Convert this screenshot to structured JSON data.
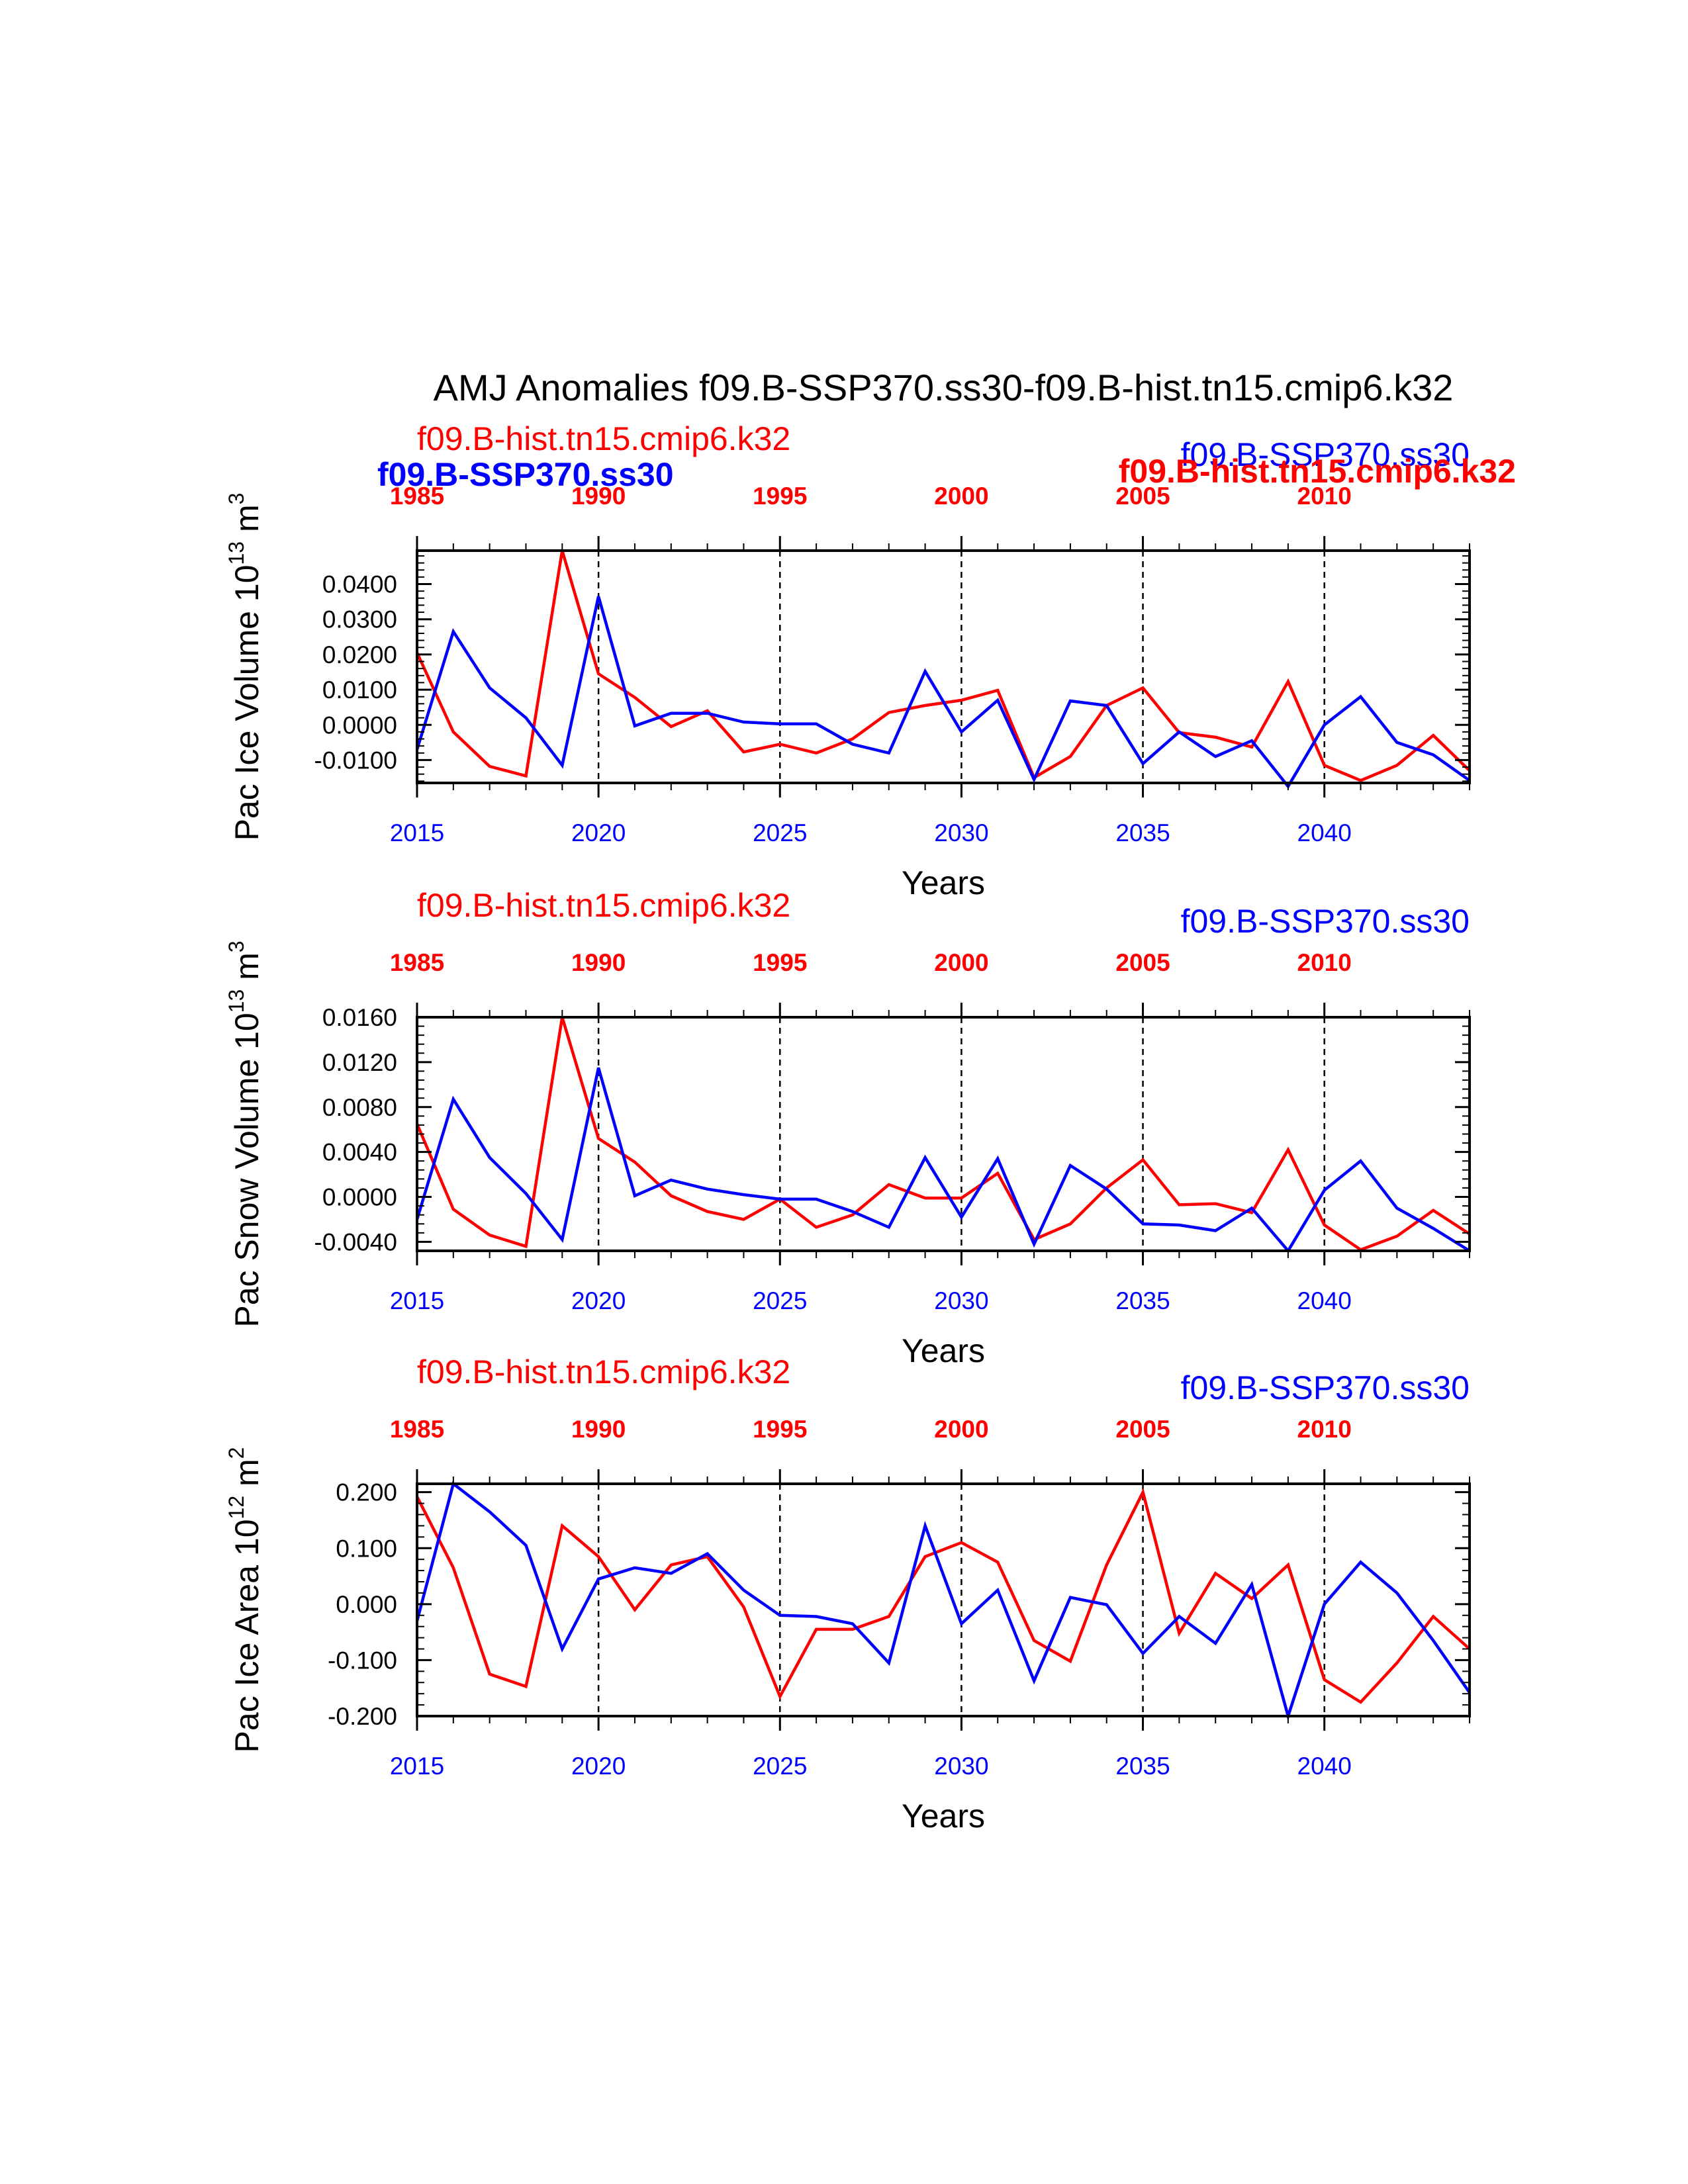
{
  "colors": {
    "exp": "#0000ff",
    "ctl": "#ff0000",
    "axis": "#000000"
  },
  "chart_data": [
    {
      "type": "line",
      "title": "AMJ Anomalies f09.B-SSP370.ss30-f09.B-hist.tn15.cmip6.k32",
      "ylabel": "Pac Ice Volume 10<sup>13</sup> m<sup>3</sup>",
      "ylabel_base": "Pac Ice Volume 10",
      "ylabel_exp": "13",
      "ylabel_unit": " m",
      "ylabel_unit_exp": "3",
      "xlabel": "Years",
      "ylim": [
        -0.0165,
        0.0495
      ],
      "yticks": [
        -0.01,
        0.0,
        0.01,
        0.02,
        0.03,
        0.04
      ],
      "ytick_labels": [
        "-0.0100",
        "0.0000",
        "0.0100",
        "0.0200",
        "0.0300",
        "0.0400"
      ],
      "yminor_step": 0.002,
      "xlim": [
        2015,
        2044
      ],
      "xticks": [
        2015,
        2020,
        2025,
        2030,
        2035,
        2040
      ],
      "xtick_labels": [
        "2015",
        "2020",
        "2025",
        "2030",
        "2035",
        "2040"
      ],
      "top_xticks": [
        1985,
        1990,
        1995,
        2000,
        2005,
        2010
      ],
      "top_xtick_labels": [
        "1985",
        "1990",
        "1995",
        "2000",
        "2005",
        "2010"
      ],
      "top_offset": 30,
      "dashed_years": [
        2020,
        2025,
        2030,
        2035,
        2040
      ],
      "overlapped_names": true,
      "left_label": "f09.B-hist.tn15.cmip6.k32",
      "right_label": "f09.B-SSP370.ss30",
      "left_label_bold": "f09.B-SSP370.ss30",
      "right_label_bold": "f09.B-hist.tn15.cmip6.k32",
      "series": [
        {
          "name": "f09.B-SSP370.ss30",
          "color": "#0000ff",
          "x_start": 2015,
          "values": [
            -0.007,
            0.0265,
            0.0105,
            0.002,
            -0.0115,
            0.0365,
            -0.0003,
            0.0033,
            0.0033,
            0.0008,
            0.0003,
            0.0003,
            -0.0055,
            -0.008,
            0.0152,
            -0.002,
            0.007,
            -0.0155,
            0.0068,
            0.0055,
            -0.011,
            -0.002,
            -0.009,
            -0.0045,
            -0.0175,
            0.0,
            0.008,
            -0.005,
            -0.0085,
            -0.0158
          ]
        },
        {
          "name": "f09.B-hist.tn15.cmip6.k32",
          "color": "#ff0000",
          "x_start": 2015,
          "values": [
            0.0205,
            -0.002,
            -0.0118,
            -0.0145,
            0.0495,
            0.0145,
            0.0078,
            -0.0005,
            0.004,
            -0.0077,
            -0.0055,
            -0.008,
            -0.004,
            0.0035,
            0.0055,
            0.007,
            0.0098,
            -0.015,
            -0.009,
            0.0055,
            0.0105,
            -0.0022,
            -0.0035,
            -0.0063,
            0.0123,
            -0.0115,
            -0.0158,
            -0.0115,
            -0.003,
            -0.013
          ]
        }
      ]
    },
    {
      "type": "line",
      "ylabel_base": "Pac Snow Volume 10",
      "ylabel_exp": "13",
      "ylabel_unit": " m",
      "ylabel_unit_exp": "3",
      "xlabel": "Years",
      "ylim": [
        -0.0048,
        0.016
      ],
      "yticks": [
        -0.004,
        0.0,
        0.004,
        0.008,
        0.012,
        0.016
      ],
      "ytick_labels": [
        "-0.0040",
        "0.0000",
        "0.0040",
        "0.0080",
        "0.0120",
        "0.0160"
      ],
      "yminor_step": 0.0008,
      "xlim": [
        2015,
        2044
      ],
      "xticks": [
        2015,
        2020,
        2025,
        2030,
        2035,
        2040
      ],
      "xtick_labels": [
        "2015",
        "2020",
        "2025",
        "2030",
        "2035",
        "2040"
      ],
      "top_xticks": [
        1985,
        1990,
        1995,
        2000,
        2005,
        2010
      ],
      "top_xtick_labels": [
        "1985",
        "1990",
        "1995",
        "2000",
        "2005",
        "2010"
      ],
      "top_offset": 30,
      "dashed_years": [
        2020,
        2025,
        2030,
        2035,
        2040
      ],
      "overlapped_names": false,
      "left_label": "f09.B-hist.tn15.cmip6.k32",
      "right_label": "f09.B-SSP370.ss30",
      "series": [
        {
          "name": "f09.B-SSP370.ss30",
          "color": "#0000ff",
          "x_start": 2015,
          "values": [
            -0.002,
            0.0087,
            0.0035,
            0.0003,
            -0.0038,
            0.0115,
            0.0001,
            0.0015,
            0.0007,
            0.0002,
            -0.0002,
            -0.0002,
            -0.0013,
            -0.0027,
            0.0035,
            -0.0018,
            0.0034,
            -0.0042,
            0.0028,
            0.0007,
            -0.0024,
            -0.0025,
            -0.003,
            -0.001,
            -0.0048,
            0.0006,
            0.0032,
            -0.001,
            -0.0028,
            -0.0048
          ]
        },
        {
          "name": "f09.B-hist.tn15.cmip6.k32",
          "color": "#ff0000",
          "x_start": 2015,
          "values": [
            0.0065,
            -0.0011,
            -0.0034,
            -0.0044,
            0.016,
            0.0052,
            0.0031,
            0.0001,
            -0.0013,
            -0.002,
            -0.0002,
            -0.0027,
            -0.0016,
            0.0011,
            -0.0001,
            -0.0001,
            0.0021,
            -0.0038,
            -0.0024,
            0.0008,
            0.0033,
            -0.0007,
            -0.0006,
            -0.0014,
            0.0042,
            -0.0025,
            -0.0047,
            -0.0035,
            -0.0012,
            -0.0033
          ]
        }
      ]
    },
    {
      "type": "line",
      "ylabel_base": "Pac Ice Area 10",
      "ylabel_exp": "12",
      "ylabel_unit": " m",
      "ylabel_unit_exp": "2",
      "xlabel": "Years",
      "ylim": [
        -0.2,
        0.215
      ],
      "yticks": [
        -0.2,
        -0.1,
        0.0,
        0.1,
        0.2
      ],
      "ytick_labels": [
        "-0.200",
        "-0.100",
        "0.000",
        "0.100",
        "0.200"
      ],
      "yminor_step": 0.02,
      "xlim": [
        2015,
        2044
      ],
      "xticks": [
        2015,
        2020,
        2025,
        2030,
        2035,
        2040
      ],
      "xtick_labels": [
        "2015",
        "2020",
        "2025",
        "2030",
        "2035",
        "2040"
      ],
      "top_xticks": [
        1985,
        1990,
        1995,
        2000,
        2005,
        2010
      ],
      "top_xtick_labels": [
        "1985",
        "1990",
        "1995",
        "2000",
        "2005",
        "2010"
      ],
      "top_offset": 30,
      "dashed_years": [
        2020,
        2025,
        2030,
        2035,
        2040
      ],
      "overlapped_names": false,
      "left_label": "f09.B-hist.tn15.cmip6.k32",
      "right_label": "f09.B-SSP370.ss30",
      "series": [
        {
          "name": "f09.B-SSP370.ss30",
          "color": "#0000ff",
          "x_start": 2015,
          "values": [
            -0.03,
            0.215,
            0.165,
            0.105,
            -0.08,
            0.045,
            0.065,
            0.055,
            0.09,
            0.025,
            -0.02,
            -0.022,
            -0.035,
            -0.105,
            0.14,
            -0.035,
            0.025,
            -0.137,
            0.012,
            -0.001,
            -0.088,
            -0.022,
            -0.07,
            0.035,
            -0.2,
            0.0,
            0.075,
            0.02,
            -0.065,
            -0.158
          ]
        },
        {
          "name": "f09.B-hist.tn15.cmip6.k32",
          "color": "#ff0000",
          "x_start": 2015,
          "values": [
            0.192,
            0.065,
            -0.125,
            -0.147,
            0.14,
            0.085,
            -0.01,
            0.07,
            0.085,
            -0.005,
            -0.165,
            -0.045,
            -0.045,
            -0.022,
            0.085,
            0.11,
            0.075,
            -0.065,
            -0.102,
            0.07,
            0.2,
            -0.052,
            0.055,
            0.01,
            0.07,
            -0.135,
            -0.175,
            -0.105,
            -0.022,
            -0.08
          ]
        }
      ]
    }
  ]
}
